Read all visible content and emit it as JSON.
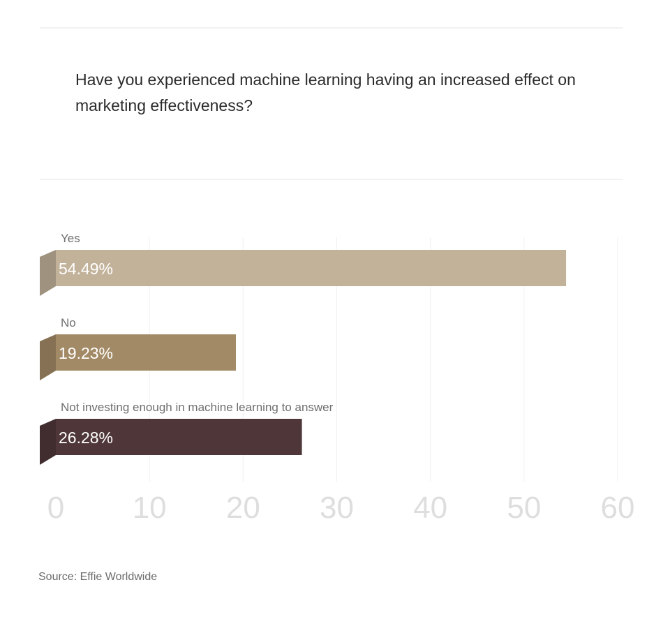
{
  "page": {
    "title": "Have you experienced machine learning having an increased effect on marketing effectiveness?",
    "source": "Source: Effie Worldwide"
  },
  "chart_data": {
    "type": "bar",
    "orientation": "horizontal",
    "categories": [
      "Yes",
      "No",
      "Not investing enough in machine learning to answer"
    ],
    "values": [
      54.49,
      19.23,
      26.28
    ],
    "value_labels": [
      "54.49%",
      "19.23%",
      "26.28%"
    ],
    "colors": [
      "#c2b29a",
      "#a38a66",
      "#4f3739"
    ],
    "xlim": [
      0,
      60
    ],
    "xticks": [
      0,
      10,
      20,
      30,
      40,
      50,
      60
    ],
    "grid": "vertical",
    "legend": "none",
    "title": "Have you experienced machine learning having an increased effect on marketing effectiveness?"
  }
}
